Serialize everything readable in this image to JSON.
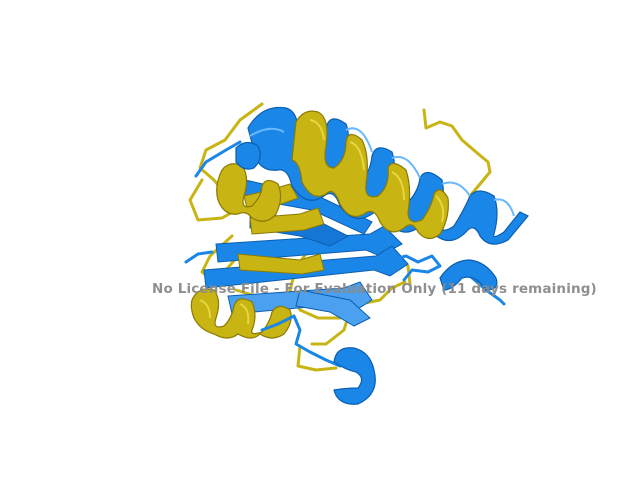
{
  "scene": {
    "description_type": "protein-structure-render",
    "colors": {
      "background": "#ffffff",
      "chain_a": "#1a86e8",
      "chain_a_dark": "#0b5fb0",
      "chain_b": "#c8b412",
      "chain_b_dark": "#8a7a05",
      "watermark": "#8a8a8a"
    }
  },
  "watermark": {
    "text": "No License File - For Evaluation Only (11 days remaining)"
  }
}
